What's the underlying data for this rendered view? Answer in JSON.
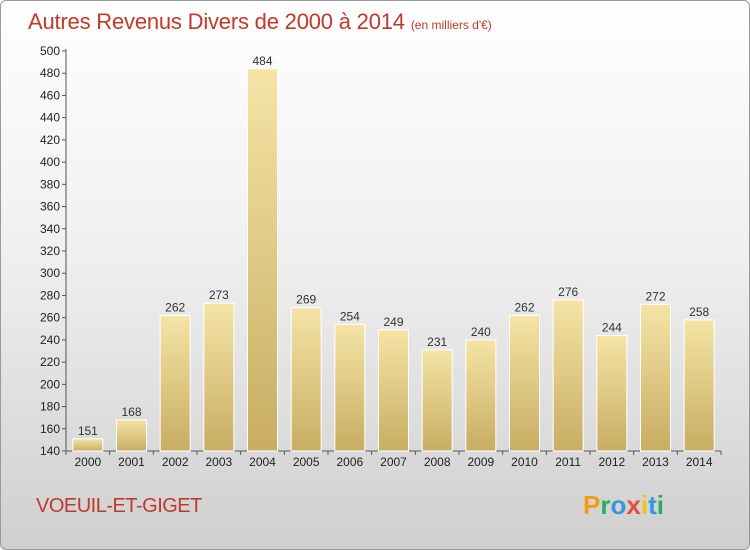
{
  "title": "Autres Revenus Divers de 2000 à 2014",
  "subtitle": "(en milliers d'€)",
  "commune": "VOEUIL-ET-GIGET",
  "logo": {
    "letters": [
      "P",
      "r",
      "o",
      "x",
      "i",
      "t",
      "i"
    ],
    "colors": [
      "#f39c12",
      "#27ae60",
      "#3498db",
      "#e74c3c",
      "#f1c40f",
      "#3498db",
      "#27ae60"
    ]
  },
  "colors": {
    "bar_light": "#f5e4a6",
    "bar_dark": "#c8ad62",
    "title": "#c0392b"
  },
  "chart_data": {
    "type": "bar",
    "title": "Autres Revenus Divers de 2000 à 2014",
    "categories": [
      "2000",
      "2001",
      "2002",
      "2003",
      "2004",
      "2005",
      "2006",
      "2007",
      "2008",
      "2009",
      "2010",
      "2011",
      "2012",
      "2013",
      "2014"
    ],
    "values": [
      151,
      168,
      262,
      273,
      484,
      269,
      254,
      249,
      231,
      240,
      262,
      276,
      244,
      272,
      258
    ],
    "ylim": [
      140,
      500
    ],
    "yticks": [
      140,
      160,
      180,
      200,
      220,
      240,
      260,
      280,
      300,
      320,
      340,
      360,
      380,
      400,
      420,
      440,
      460,
      480,
      500
    ],
    "grid": false,
    "xlabel": "",
    "ylabel": ""
  }
}
